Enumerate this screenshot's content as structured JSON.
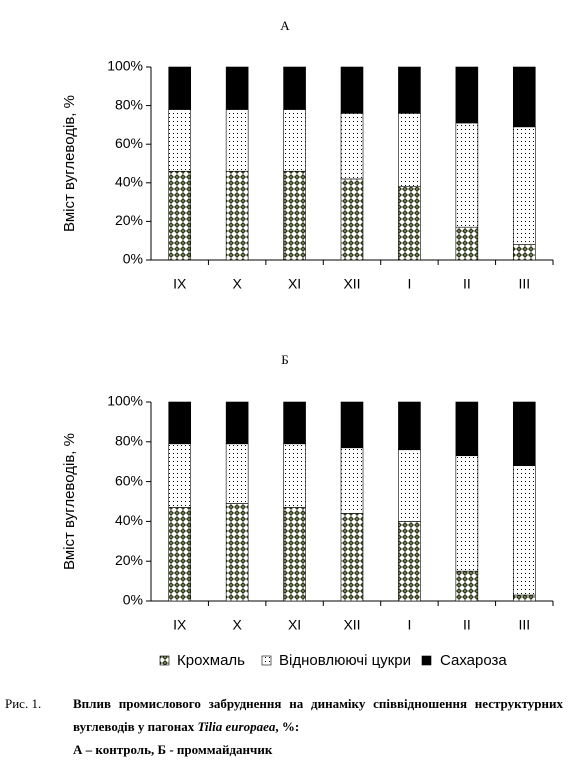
{
  "chart_data": [
    {
      "type": "bar",
      "stacked": true,
      "title": "А",
      "y_label": "Вміст вуглеводів, %",
      "categories": [
        "IX",
        "X",
        "XI",
        "XII",
        "I",
        "II",
        "III"
      ],
      "series": [
        {
          "color": "#2f3a1a",
          "pattern": "diamond",
          "values": [
            46,
            46,
            46,
            42,
            38,
            17,
            8
          ]
        },
        {
          "color": "#000000",
          "pattern": "dots",
          "values": [
            32,
            32,
            32,
            34,
            38,
            54,
            61
          ]
        },
        {
          "color": "#000000",
          "pattern": "solid",
          "values": [
            22,
            22,
            22,
            24,
            24,
            29,
            31
          ]
        }
      ],
      "ylim": [
        0,
        100
      ],
      "yticks": [
        {
          "value": 0,
          "label": "0%"
        },
        {
          "value": 20,
          "label": "20%"
        },
        {
          "value": 40,
          "label": "40%"
        },
        {
          "value": 60,
          "label": "60%"
        },
        {
          "value": 80,
          "label": "80%"
        },
        {
          "value": 100,
          "label": "100%"
        }
      ]
    },
    {
      "type": "bar",
      "stacked": true,
      "title": "Б",
      "y_label": "Вміст вуглеводів, %",
      "categories": [
        "IX",
        "X",
        "XI",
        "XII",
        "I",
        "II",
        "III"
      ],
      "series": [
        {
          "name": "Крохмаль",
          "color": "#2f3a1a",
          "pattern": "diamond",
          "values": [
            47,
            49,
            47,
            44,
            40,
            15,
            3
          ]
        },
        {
          "name": "Відновлюючі цукри",
          "color": "#000000",
          "pattern": "dots",
          "values": [
            32,
            30,
            32,
            33,
            36,
            58,
            65
          ]
        },
        {
          "name": "Сахароза",
          "color": "#000000",
          "pattern": "solid",
          "values": [
            21,
            21,
            21,
            23,
            24,
            27,
            32
          ]
        }
      ],
      "ylim": [
        0,
        100
      ],
      "yticks": [
        {
          "value": 0,
          "label": "0%"
        },
        {
          "value": 20,
          "label": "20%"
        },
        {
          "value": 40,
          "label": "40%"
        },
        {
          "value": 60,
          "label": "60%"
        },
        {
          "value": 80,
          "label": "80%"
        },
        {
          "value": 100,
          "label": "100%"
        }
      ]
    }
  ],
  "caption": {
    "number": "Рис. 1.",
    "text": "Вплив промислового забруднення на динаміку співвідношення неструктурних вуглеводів у пагонах",
    "species": "Tilia europaea",
    "suffix": ", %:",
    "line2": "А – контроль, Б - проммайданчик"
  }
}
